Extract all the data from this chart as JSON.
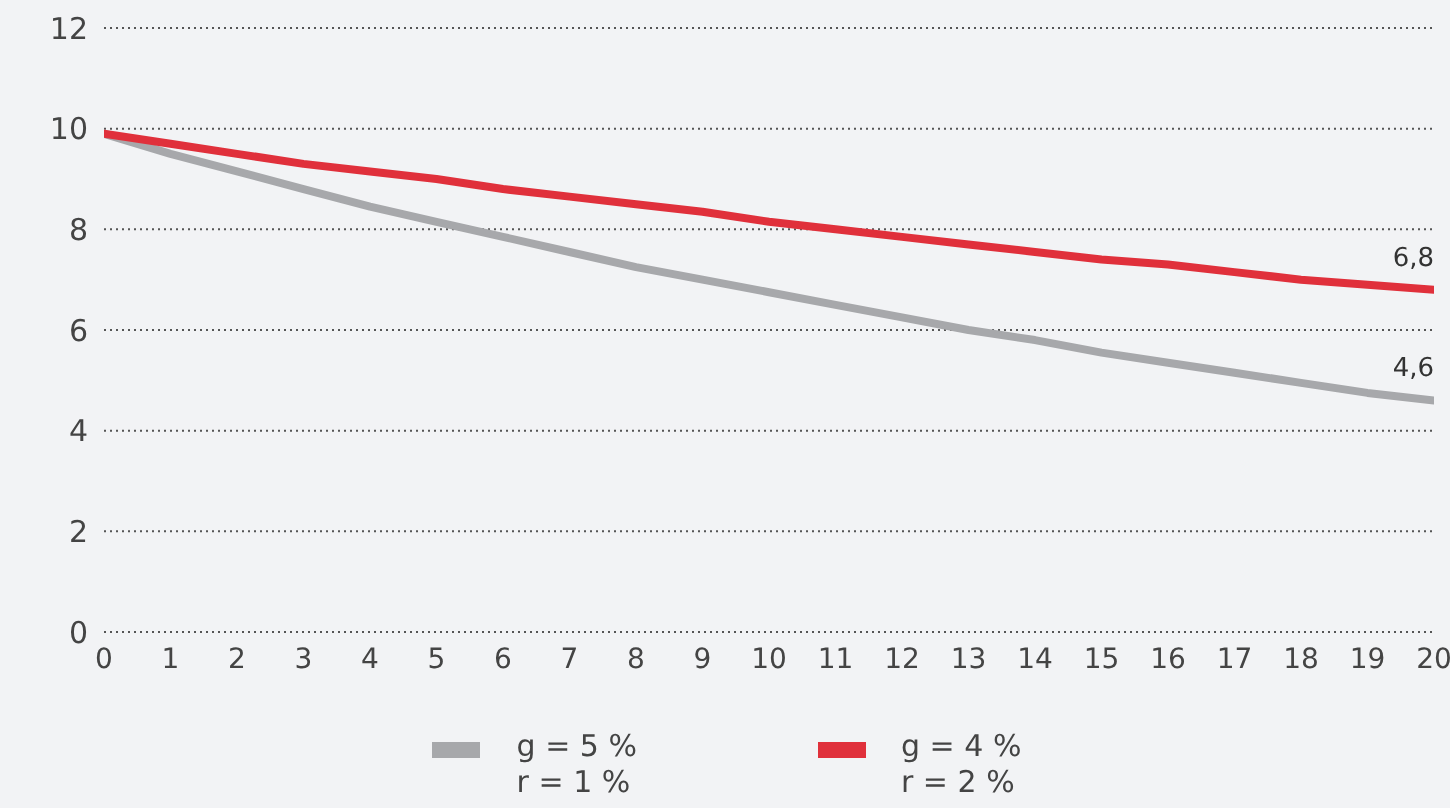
{
  "chart_data": {
    "type": "line",
    "x": [
      0,
      1,
      2,
      3,
      4,
      5,
      6,
      7,
      8,
      9,
      10,
      11,
      12,
      13,
      14,
      15,
      16,
      17,
      18,
      19,
      20
    ],
    "series": [
      {
        "name": "g = 5 %\nr = 1 %",
        "color": "#a7a8ab",
        "values": [
          9.9,
          9.5,
          9.15,
          8.8,
          8.45,
          8.15,
          7.85,
          7.55,
          7.25,
          7.0,
          6.75,
          6.5,
          6.25,
          6.0,
          5.8,
          5.55,
          5.35,
          5.15,
          4.95,
          4.75,
          4.6
        ],
        "value_labels": [
          null,
          null,
          null,
          null,
          null,
          null,
          null,
          null,
          null,
          null,
          null,
          null,
          null,
          null,
          null,
          null,
          null,
          null,
          null,
          null,
          "4,6"
        ]
      },
      {
        "name": "g = 4 %\nr = 2 %",
        "color": "#e0303b",
        "values": [
          9.9,
          9.7,
          9.5,
          9.3,
          9.15,
          9.0,
          8.8,
          8.65,
          8.5,
          8.35,
          8.15,
          8.0,
          7.85,
          7.7,
          7.55,
          7.4,
          7.3,
          7.15,
          7.0,
          6.9,
          6.8
        ],
        "value_labels": [
          null,
          null,
          null,
          null,
          null,
          null,
          null,
          null,
          null,
          null,
          null,
          null,
          null,
          null,
          null,
          null,
          null,
          null,
          null,
          null,
          "6,8"
        ]
      }
    ],
    "xlim": [
      0,
      20
    ],
    "xticks": [
      0,
      1,
      2,
      3,
      4,
      5,
      6,
      7,
      8,
      9,
      10,
      11,
      12,
      13,
      14,
      15,
      16,
      17,
      18,
      19,
      20
    ],
    "ylim": [
      0,
      12
    ],
    "yticks": [
      0,
      2,
      4,
      6,
      8,
      10,
      12
    ],
    "grid": "y",
    "legend": "bottom",
    "marker": "none",
    "line_style": "solid"
  }
}
